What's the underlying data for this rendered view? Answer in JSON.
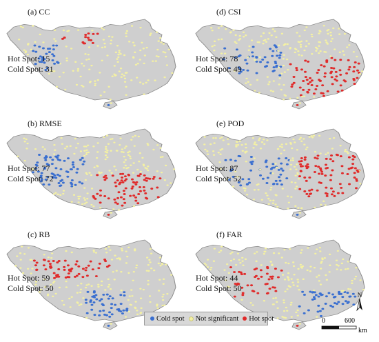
{
  "panels": [
    {
      "label": "(a) CC",
      "hot_label": "Hot Spot: 15",
      "cold_label": "Cold Spot: 31",
      "hot": 15,
      "cold": 31
    },
    {
      "label": "(b) RMSE",
      "hot_label": "Hot Spot: 77",
      "cold_label": "Cold Spot: 72",
      "hot": 77,
      "cold": 72
    },
    {
      "label": "(c) RB",
      "hot_label": "Hot Spot: 59",
      "cold_label": "Cold Spot: 50",
      "hot": 59,
      "cold": 50
    },
    {
      "label": "(d) CSI",
      "hot_label": "Hot Spot: 78",
      "cold_label": "Cold Spot: 49",
      "hot": 78,
      "cold": 49
    },
    {
      "label": "(e) POD",
      "hot_label": "Hot Spot: 87",
      "cold_label": "Cold Spot: 52",
      "hot": 87,
      "cold": 52
    },
    {
      "label": "(f) FAR",
      "hot_label": "Hot Spot: 44",
      "cold_label": "Cold Spot: 50",
      "hot": 44,
      "cold": 50
    }
  ],
  "legend": {
    "cold": "Cold spot",
    "not_sig": "Not significant",
    "hot": "Hot spot"
  },
  "scale": {
    "zero": "0",
    "max": "600",
    "unit": "km"
  },
  "north": "N",
  "colors": {
    "cold": "#3a6fd0",
    "not_sig": "#f4f1a3",
    "hot": "#e02a2a",
    "land": "#cfcfcf",
    "outline": "#8a8a8a"
  }
}
